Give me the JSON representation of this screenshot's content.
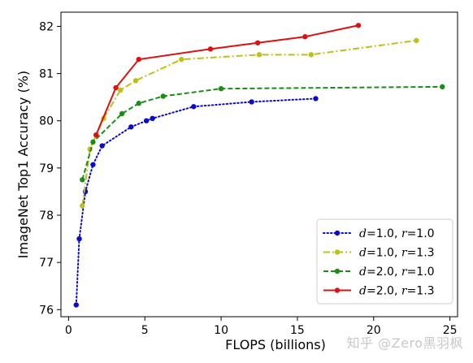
{
  "watermark": "知乎 @Zero黑羽枫",
  "chart_data": {
    "type": "line",
    "title": "",
    "xlabel": "FLOPS (billions)",
    "ylabel": "ImageNet Top1 Accuracy (%)",
    "xlim": [
      -0.5,
      25.5
    ],
    "ylim": [
      75.85,
      82.3
    ],
    "xticks": [
      0,
      5,
      10,
      15,
      20,
      25
    ],
    "yticks": [
      76,
      77,
      78,
      79,
      80,
      81,
      82
    ],
    "grid": false,
    "legend_position": "bottom-right",
    "series": [
      {
        "name": "d=1.0, r=1.0",
        "legend_parts": [
          "d",
          "=1.0, ",
          "r",
          "=1.0"
        ],
        "color": "#0a0acc",
        "linestyle": "dotted",
        "x": [
          0.5,
          0.7,
          1.1,
          1.6,
          2.2,
          4.1,
          5.1,
          5.5,
          8.2,
          12.0,
          16.2
        ],
        "y": [
          76.1,
          77.5,
          78.5,
          79.07,
          79.47,
          79.87,
          80.0,
          80.05,
          80.3,
          80.4,
          80.47
        ]
      },
      {
        "name": "d=1.0, r=1.3",
        "legend_parts": [
          "d",
          "=1.0, ",
          "r",
          "=1.3"
        ],
        "color": "#bfbf1a",
        "linestyle": "dashdot",
        "x": [
          0.9,
          1.4,
          2.3,
          3.4,
          4.4,
          7.4,
          12.5,
          15.9,
          22.8
        ],
        "y": [
          78.2,
          79.4,
          80.05,
          80.65,
          80.85,
          81.3,
          81.4,
          81.4,
          81.7
        ]
      },
      {
        "name": "d=2.0, r=1.0",
        "legend_parts": [
          "d",
          "=2.0, ",
          "r",
          "=1.0"
        ],
        "color": "#1a8c1a",
        "linestyle": "dashed",
        "x": [
          0.9,
          1.6,
          3.5,
          4.6,
          6.2,
          10.0,
          24.5
        ],
        "y": [
          78.75,
          79.55,
          80.15,
          80.37,
          80.52,
          80.68,
          80.72
        ]
      },
      {
        "name": "d=2.0, r=1.3",
        "legend_parts": [
          "d",
          "=2.0, ",
          "r",
          "=1.3"
        ],
        "color": "#dd1111",
        "linestyle": "solid",
        "x": [
          1.8,
          3.1,
          4.6,
          9.3,
          12.4,
          15.5,
          19.0
        ],
        "y": [
          79.7,
          80.7,
          81.3,
          81.52,
          81.65,
          81.78,
          82.02
        ]
      }
    ]
  }
}
